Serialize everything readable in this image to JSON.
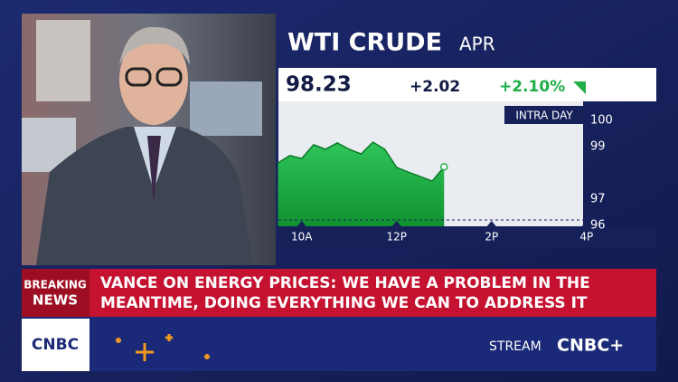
{
  "header": {
    "title": "WTI CRUDE",
    "contract": "APR",
    "last": "98.23",
    "change": "+2.02",
    "change_pct": "+2.10%",
    "range_label": "INTRA DAY"
  },
  "chart_data": {
    "type": "area",
    "color": "#1fae48",
    "categories": [
      null,
      null,
      "10A",
      null,
      null,
      null,
      null,
      null,
      null,
      null,
      "12P",
      null,
      null,
      null,
      null,
      null,
      null,
      null,
      "2P",
      null,
      null,
      null,
      null,
      null,
      null,
      null,
      "4P"
    ],
    "values": [
      98.38,
      98.66,
      98.55,
      99.07,
      98.9,
      99.14,
      98.9,
      98.72,
      99.17,
      98.9,
      98.21,
      98.03,
      97.86,
      97.69,
      98.23,
      null,
      null,
      null,
      null,
      null,
      null,
      null,
      null,
      null,
      null,
      null,
      null
    ],
    "baseline": 96.21,
    "ylim": [
      95.97,
      100.72
    ],
    "yticks": [
      100,
      99,
      97,
      96
    ]
  },
  "banner": {
    "tag_top": "BREAKING",
    "tag_bottom": "NEWS",
    "line1": "VANCE ON ENERGY PRICES: WE HAVE A PROBLEM IN THE",
    "line2": "MEANTIME, DOING EVERYTHING WE CAN TO ADDRESS IT"
  },
  "footer": {
    "logo": "CNBC",
    "stream": "STREAM",
    "stream_brand": "CNBC+"
  }
}
